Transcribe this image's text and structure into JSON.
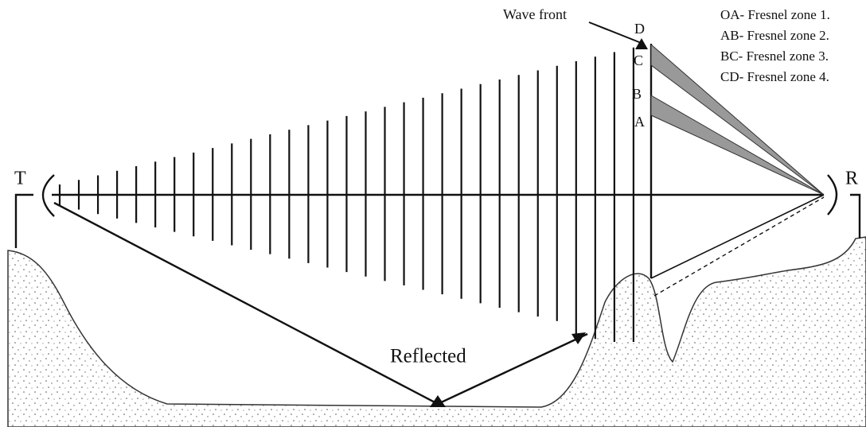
{
  "labels": {
    "wave_front": "Wave front",
    "transmitter": "T",
    "receiver": "R",
    "reflected": "Reflected",
    "points": [
      "D",
      "C",
      "B",
      "A"
    ]
  },
  "legend": [
    "OA- Fresnel zone 1.",
    "AB- Fresnel zone 2.",
    "BC- Fresnel zone 3.",
    "CD- Fresnel zone 4."
  ]
}
